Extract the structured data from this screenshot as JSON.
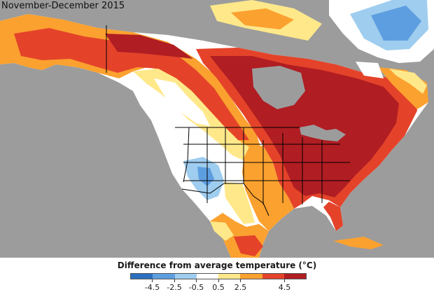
{
  "title": "November-December 2015",
  "legend": {
    "title": "Difference from average temperature (°C)",
    "colors": [
      "#2c6fc0",
      "#5d9ee0",
      "#9fcdef",
      "#ffffff",
      "#ffe88a",
      "#fba12f",
      "#e4432a",
      "#b01d22"
    ],
    "ticks": [
      "-4.5",
      "-2.5",
      "-0.5",
      "0.5",
      "2.5",
      "4.5"
    ]
  },
  "map": {
    "colors": {
      "background": "#9c9c9c",
      "ocean": "#9c9c9c",
      "near_normal": "#ffffff",
      "slightly_warm": "#ffe88a",
      "warm": "#fba12f",
      "very_warm": "#e4432a",
      "record_warm": "#b01d22",
      "slightly_cool": "#9fcdef",
      "cool": "#5d9ee0",
      "borders": "#000000",
      "lakes": "#9c9c9c"
    }
  }
}
